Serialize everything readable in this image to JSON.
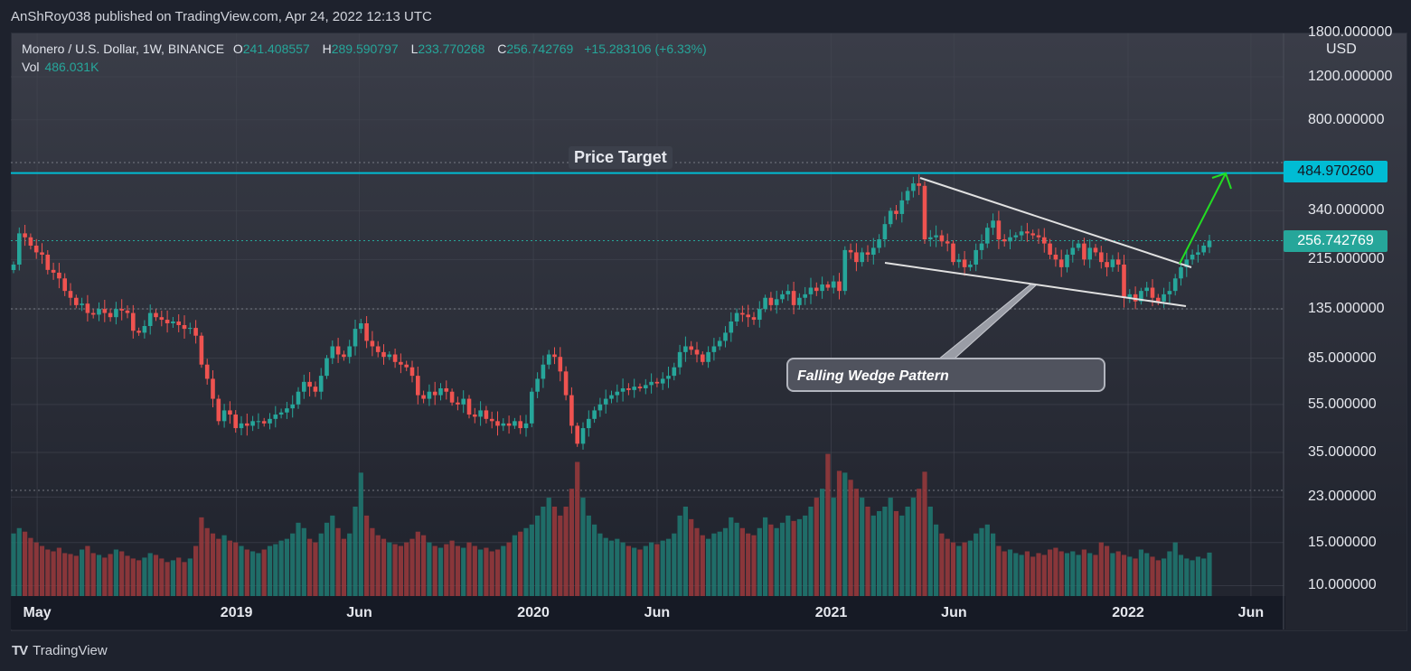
{
  "header": {
    "published": "AnShRoy038 published on TradingView.com, Apr 24, 2022 12:13 UTC"
  },
  "legend": {
    "symbol": "Monero / U.S. Dollar, 1W, BINANCE",
    "o_label": "O",
    "o": "241.408557",
    "h_label": "H",
    "h": "289.590797",
    "l_label": "L",
    "l": "233.770268",
    "c_label": "C",
    "c": "256.742769",
    "change": "+15.283106 (+6.33%)",
    "vol_label": "Vol",
    "vol": "486.031K"
  },
  "footer": {
    "brand": "TradingView",
    "logo": "TV"
  },
  "chart_data": {
    "type": "candlestick",
    "symbol": "XMR/USD",
    "interval": "1W",
    "y_scale": "log",
    "y_unit": "USD",
    "ylim": [
      10,
      1800
    ],
    "y_ticks": [
      "1800.000000",
      "1200.000000",
      "800.000000",
      "340.000000",
      "215.000000",
      "135.000000",
      "85.000000",
      "55.000000",
      "35.000000",
      "23.000000",
      "15.000000",
      "10.000000"
    ],
    "y_tick_values": [
      1800,
      1200,
      800,
      340,
      215,
      135,
      85,
      55,
      35,
      23,
      15,
      10
    ],
    "x_ticks": [
      "May",
      "2019",
      "Jun",
      "2020",
      "Jun",
      "2021",
      "Jun",
      "2022",
      "Jun"
    ],
    "x_tick_dates": [
      "2018-05-01",
      "2019-01-01",
      "2019-06-01",
      "2020-01-01",
      "2020-06-01",
      "2021-01-01",
      "2021-06-01",
      "2022-01-01",
      "2022-06-01"
    ],
    "first_week": "2018-04-02",
    "last_open": 241.408557,
    "closes": [
      205,
      275,
      265,
      245,
      230,
      225,
      195,
      190,
      180,
      160,
      150,
      140,
      142,
      130,
      128,
      135,
      130,
      125,
      135,
      133,
      130,
      110,
      108,
      115,
      130,
      125,
      122,
      118,
      120,
      116,
      112,
      113,
      105,
      80,
      70,
      58,
      47,
      52,
      50,
      44,
      46,
      45,
      47,
      47,
      46,
      48,
      50,
      51,
      53,
      55,
      62,
      68,
      65,
      62,
      72,
      85,
      95,
      88,
      86,
      95,
      112,
      118,
      100,
      95,
      90,
      86,
      88,
      82,
      80,
      78,
      72,
      60,
      58,
      62,
      60,
      64,
      62,
      56,
      55,
      58,
      50,
      49,
      52,
      48,
      47,
      45,
      46,
      45,
      47,
      44,
      46,
      62,
      70,
      80,
      88,
      86,
      75,
      60,
      45,
      38,
      44,
      48,
      52,
      55,
      58,
      60,
      62,
      64,
      63,
      65,
      64,
      66,
      68,
      67,
      70,
      72,
      78,
      90,
      95,
      92,
      88,
      82,
      90,
      95,
      100,
      108,
      120,
      130,
      128,
      125,
      122,
      135,
      150,
      140,
      148,
      155,
      160,
      140,
      150,
      155,
      165,
      160,
      170,
      165,
      175,
      160,
      235,
      230,
      210,
      230,
      225,
      240,
      260,
      300,
      340,
      330,
      375,
      410,
      440,
      430,
      260,
      265,
      270,
      255,
      250,
      210,
      215,
      200,
      205,
      235,
      250,
      290,
      310,
      260,
      255,
      265,
      270,
      280,
      275,
      270,
      265,
      250,
      225,
      215,
      200,
      225,
      240,
      250,
      215,
      240,
      230,
      210,
      200,
      215,
      205,
      150,
      155,
      145,
      160,
      165,
      150,
      145,
      155,
      160,
      180,
      200,
      215,
      225,
      230,
      245,
      256.742769
    ],
    "volumes_k": [
      700,
      760,
      720,
      650,
      600,
      560,
      520,
      500,
      540,
      480,
      470,
      450,
      520,
      560,
      480,
      460,
      430,
      470,
      520,
      500,
      450,
      420,
      400,
      430,
      480,
      460,
      420,
      380,
      400,
      430,
      380,
      420,
      560,
      880,
      760,
      700,
      640,
      680,
      620,
      600,
      560,
      520,
      500,
      480,
      520,
      560,
      580,
      620,
      640,
      700,
      820,
      760,
      640,
      600,
      700,
      820,
      900,
      760,
      640,
      700,
      1000,
      1380,
      900,
      760,
      680,
      640,
      600,
      580,
      560,
      600,
      640,
      720,
      680,
      600,
      560,
      540,
      580,
      620,
      560,
      540,
      600,
      560,
      520,
      540,
      500,
      520,
      560,
      600,
      680,
      720,
      760,
      800,
      900,
      1000,
      1100,
      1000,
      900,
      1000,
      1200,
      1500,
      1100,
      900,
      800,
      700,
      650,
      620,
      640,
      600,
      560,
      540,
      520,
      560,
      600,
      580,
      620,
      640,
      700,
      900,
      1000,
      860,
      760,
      680,
      640,
      700,
      720,
      760,
      880,
      820,
      760,
      700,
      680,
      760,
      880,
      800,
      760,
      820,
      900,
      840,
      860,
      900,
      1000,
      1100,
      1200,
      1590,
      1100,
      1400,
      1380,
      1300,
      1200,
      1100,
      1000,
      900,
      950,
      1000,
      1100,
      950,
      900,
      1000,
      1100,
      1200,
      1390,
      1000,
      800,
      700,
      640,
      600,
      560,
      600,
      620,
      700,
      760,
      800,
      700,
      560,
      500,
      520,
      480,
      460,
      500,
      440,
      480,
      460,
      520,
      540,
      500,
      480,
      500,
      460,
      520,
      480,
      460,
      600,
      560,
      480,
      500,
      460,
      440,
      420,
      520,
      480,
      440,
      400,
      420,
      500,
      600,
      460,
      420,
      400,
      440,
      420,
      486.031
    ],
    "last_price_label": "256.742769",
    "target_price": 484.97026,
    "target_label": "484.970260",
    "annotations": {
      "price_target": "Price Target",
      "pattern": "Falling Wedge Pattern"
    },
    "colors": {
      "up": "#26a69a",
      "down": "#ef5350",
      "target_line": "#00bcd4",
      "arrow": "#22dd22",
      "wedge": "#e0e0e0"
    },
    "grid": true
  }
}
